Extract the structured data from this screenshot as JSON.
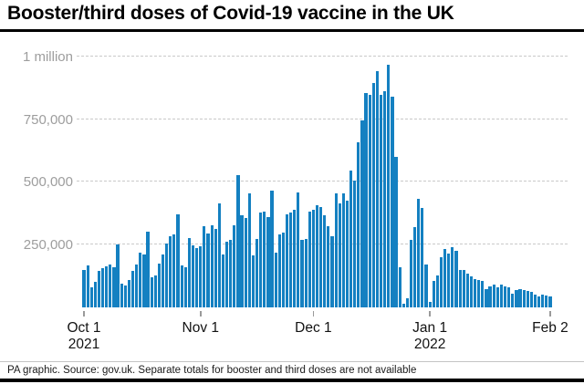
{
  "title": "Booster/third doses of Covid-19 vaccine in the UK",
  "footer": "PA graphic. Source: gov.uk. Separate totals for booster and third doses are not available",
  "colors": {
    "bar": "#1480c1",
    "gridline": "#c9c9c9",
    "y_label_text": "#9d9d9d",
    "x_label_text": "#121212",
    "rule": "#000000"
  },
  "chart_data": {
    "type": "bar",
    "title": "Booster/third doses of Covid-19 vaccine in the UK",
    "xlabel": "",
    "ylabel": "",
    "unit": "doses per day",
    "ylim": [
      0,
      1000000
    ],
    "grid": "dashed horizontal",
    "legend": "none",
    "y_ticks": [
      {
        "label": "1 million",
        "value": 1000000
      },
      {
        "label": "750,000",
        "value": 750000
      },
      {
        "label": "500,000",
        "value": 500000
      },
      {
        "label": "250,000",
        "value": 250000
      }
    ],
    "x_ticks": [
      {
        "label": "Oct 1",
        "sublabel": "2021",
        "day_index": 0
      },
      {
        "label": "Nov 1",
        "sublabel": "",
        "day_index": 31
      },
      {
        "label": "Dec 1",
        "sublabel": "",
        "day_index": 61
      },
      {
        "label": "Jan 1",
        "sublabel": "2022",
        "day_index": 92
      },
      {
        "label": "Feb 2",
        "sublabel": "",
        "day_index": 124
      }
    ],
    "x_range": "Oct 1 2021 to Feb 2 2022, one bar per day",
    "values": [
      149000,
      168000,
      80000,
      102000,
      147000,
      155000,
      165000,
      171000,
      161000,
      249000,
      96000,
      88000,
      110000,
      147000,
      171000,
      219000,
      210000,
      302000,
      120000,
      128000,
      173000,
      210000,
      256000,
      282000,
      289000,
      371000,
      168000,
      161000,
      277000,
      246000,
      237000,
      243000,
      322000,
      294000,
      328000,
      313000,
      413000,
      210000,
      262000,
      268000,
      328000,
      527000,
      367000,
      355000,
      455000,
      207000,
      274000,
      377000,
      383000,
      359000,
      464000,
      219000,
      292000,
      298000,
      371000,
      377000,
      389000,
      458000,
      268000,
      274000,
      383000,
      389000,
      407000,
      401000,
      368000,
      322000,
      282000,
      456000,
      415000,
      456000,
      425000,
      546000,
      504000,
      656000,
      745000,
      855000,
      845000,
      895000,
      940000,
      845000,
      860000,
      966000,
      840000,
      600000,
      160000,
      15000,
      35000,
      268000,
      318000,
      434000,
      397000,
      170000,
      20000,
      104000,
      128000,
      201000,
      231000,
      216000,
      240000,
      225000,
      148000,
      150000,
      133000,
      124000,
      114000,
      108000,
      104000,
      71000,
      84000,
      92000,
      80000,
      90000,
      82000,
      80000,
      56000,
      68000,
      74000,
      68000,
      65000,
      62000,
      50000,
      44000,
      50000,
      46000,
      44000
    ]
  }
}
